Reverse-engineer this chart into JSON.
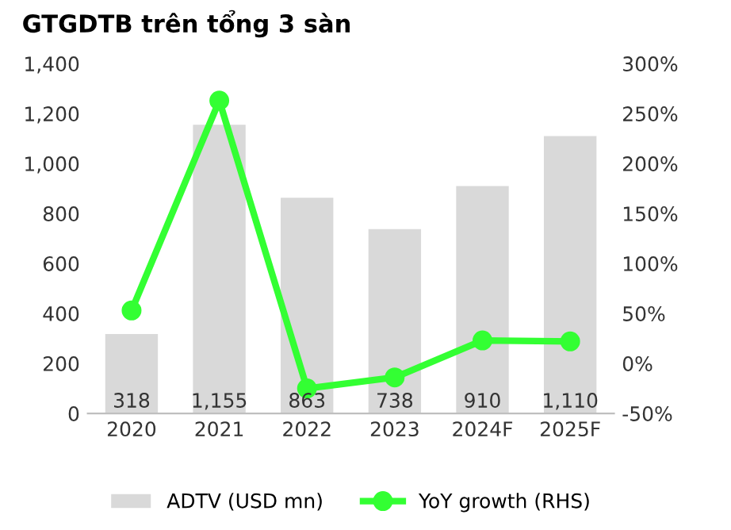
{
  "chart_data": {
    "type": "bar",
    "title": "GTGDTB trên tổng 3 sàn",
    "categories": [
      "2020",
      "2021",
      "2022",
      "2023",
      "2024F",
      "2025F"
    ],
    "series": [
      {
        "name": "ADTV (USD mn)",
        "color": "#d9d9d9",
        "values": [
          318,
          1155,
          863,
          738,
          910,
          1110
        ],
        "value_labels": [
          "318",
          "1,155",
          "863",
          "738",
          "910",
          "1,110"
        ]
      },
      {
        "name": "YoY growth (RHS)",
        "type": "line",
        "axis": "y2",
        "color": "#33ff33",
        "marker": "circle",
        "values": [
          53,
          263,
          -25,
          -14,
          23,
          22
        ]
      }
    ],
    "ylim": [
      0,
      1400
    ],
    "yticks": [
      0,
      200,
      400,
      600,
      800,
      {
        "value": 1000,
        "label": "1,000"
      },
      {
        "value": 1200,
        "label": "1,200"
      },
      {
        "value": 1400,
        "label": "1,400"
      }
    ],
    "y2lim": [
      -50,
      300
    ],
    "y2ticks": [
      {
        "value": -50,
        "label": "-50%"
      },
      {
        "value": 0,
        "label": "0%"
      },
      {
        "value": 50,
        "label": "50%"
      },
      {
        "value": 100,
        "label": "100%"
      },
      {
        "value": 150,
        "label": "150%"
      },
      {
        "value": 200,
        "label": "200%"
      },
      {
        "value": 250,
        "label": "250%"
      },
      {
        "value": 300,
        "label": "300%"
      }
    ],
    "grid": false,
    "legend": "bottom"
  }
}
